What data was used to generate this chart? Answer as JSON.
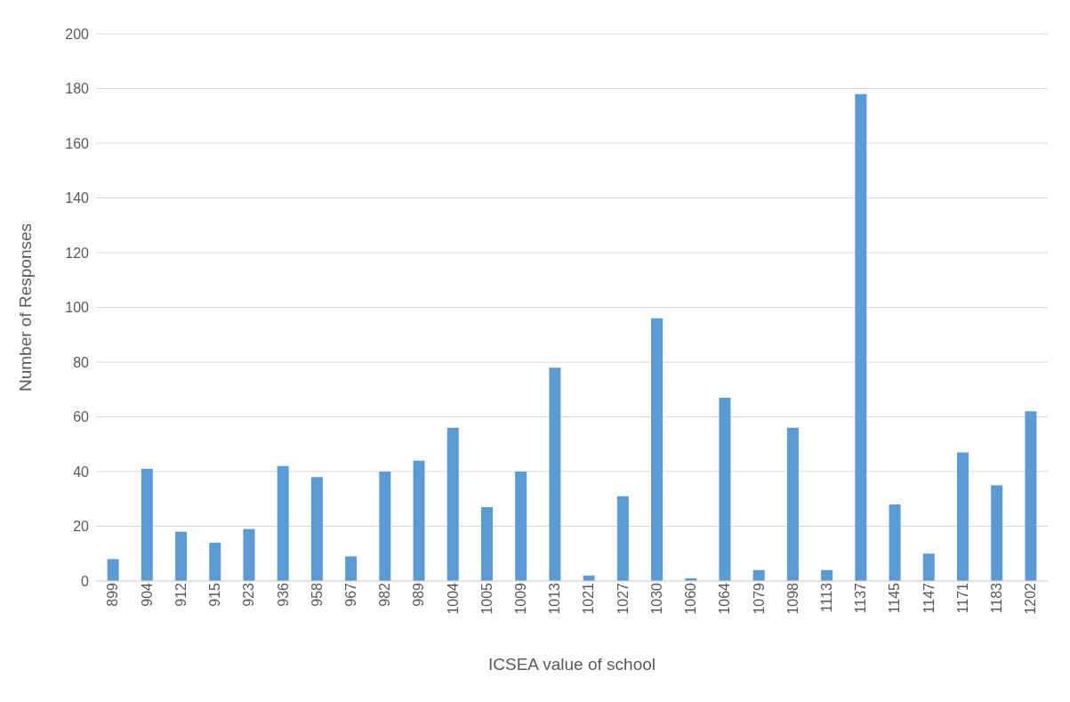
{
  "chart_data": {
    "type": "bar",
    "xlabel": "ICSEA value of school",
    "ylabel": "Number of Responses",
    "categories": [
      "899",
      "904",
      "912",
      "915",
      "923",
      "936",
      "958",
      "967",
      "982",
      "989",
      "1004",
      "1005",
      "1009",
      "1013",
      "1021",
      "1027",
      "1030",
      "1060",
      "1064",
      "1079",
      "1098",
      "1113",
      "1137",
      "1145",
      "1147",
      "1171",
      "1183",
      "1202"
    ],
    "values": [
      8,
      41,
      18,
      14,
      19,
      42,
      38,
      9,
      40,
      44,
      56,
      27,
      40,
      78,
      2,
      31,
      96,
      1,
      67,
      4,
      56,
      4,
      178,
      28,
      10,
      47,
      35,
      62
    ],
    "color": "#5b9bd5",
    "ylim": [
      0,
      200
    ],
    "yticks": [
      0,
      20,
      40,
      60,
      80,
      100,
      120,
      140,
      160,
      180,
      200
    ],
    "grid": "y",
    "legend": false
  }
}
